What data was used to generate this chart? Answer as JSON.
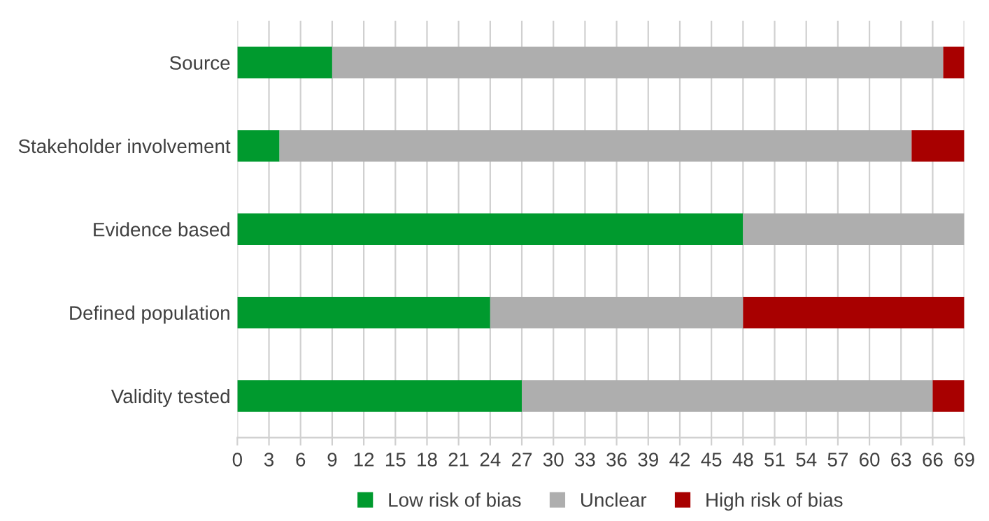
{
  "chart_data": {
    "type": "bar",
    "orientation": "horizontal",
    "stacked": true,
    "categories": [
      "Source",
      "Stakeholder involvement",
      "Evidence based",
      "Defined population",
      "Validity tested"
    ],
    "series": [
      {
        "name": "Low risk of bias",
        "color": "#009a2e",
        "values": [
          9,
          4,
          48,
          24,
          27
        ]
      },
      {
        "name": "Unclear",
        "color": "#aeaeae",
        "values": [
          58,
          60,
          21,
          24,
          39
        ]
      },
      {
        "name": "High risk of bias",
        "color": "#a80000",
        "values": [
          2,
          5,
          0,
          21,
          3
        ]
      }
    ],
    "xlim": [
      0,
      69
    ],
    "xticks": [
      0,
      3,
      6,
      9,
      12,
      15,
      18,
      21,
      24,
      27,
      30,
      33,
      36,
      39,
      42,
      45,
      48,
      51,
      54,
      57,
      60,
      63,
      66,
      69
    ],
    "grid": "x",
    "legend": "bottom"
  }
}
